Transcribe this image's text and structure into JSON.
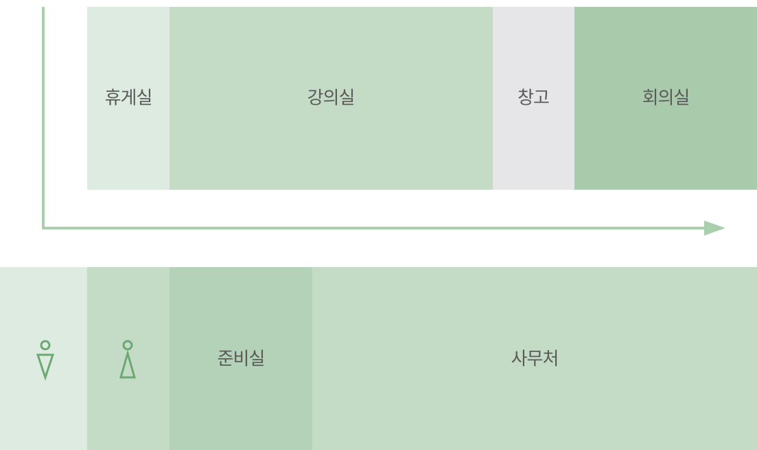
{
  "rooms_top": [
    "휴게실",
    "강의실",
    "창고",
    "회의실"
  ],
  "rooms_bottom": [
    "준비실",
    "사무처"
  ]
}
